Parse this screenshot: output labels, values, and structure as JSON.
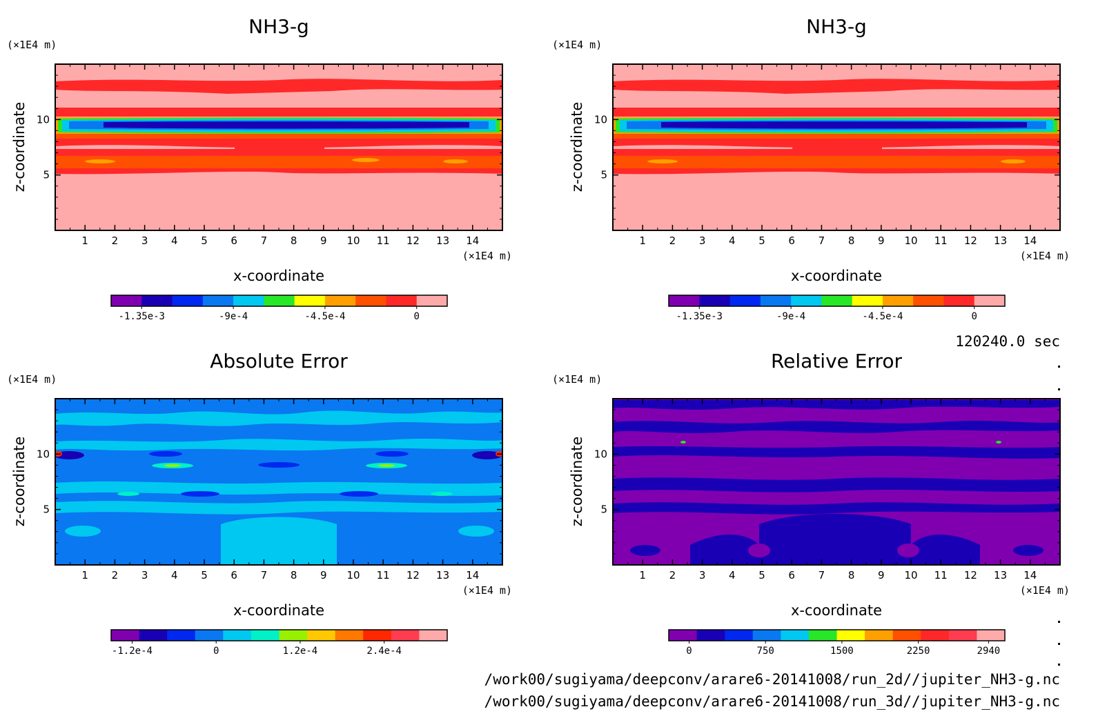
{
  "time_label": "120240.0 sec",
  "file_paths": [
    "/work00/sugiyama/deepconv/arare6-20141008/run_2d//jupiter_NH3-g.nc",
    "/work00/sugiyama/deepconv/arare6-20141008/run_3d//jupiter_NH3-g.nc"
  ],
  "chart_data": [
    {
      "type": "heatmap",
      "title": "NH3-g",
      "xlabel": "x-coordinate",
      "ylabel": "z-coordinate",
      "x_unit": "(×1E4 m)",
      "y_unit": "(×1E4 m)",
      "xlim": [
        0,
        15
      ],
      "ylim": [
        0,
        15
      ],
      "x_ticks": [
        "1",
        "2",
        "3",
        "4",
        "5",
        "6",
        "7",
        "8",
        "9",
        "10",
        "11",
        "12",
        "13",
        "14"
      ],
      "y_ticks": [
        "5",
        "10"
      ],
      "colorbar": {
        "colors": [
          "#8000b0",
          "#1a00b4",
          "#0028f0",
          "#0a78f0",
          "#00c8f0",
          "#28e628",
          "#ffff00",
          "#ffa000",
          "#ff5000",
          "#ff2828",
          "#ffaaaa"
        ],
        "tick_labels": [
          "-1.35e-3",
          "-9e-4",
          "-4.5e-4",
          "0"
        ],
        "tick_values": [
          -0.00135,
          -0.0009,
          -0.00045,
          0
        ],
        "range": [
          -0.0015,
          0.00015
        ]
      }
    },
    {
      "type": "heatmap",
      "title": "NH3-g",
      "xlabel": "x-coordinate",
      "ylabel": "z-coordinate",
      "x_unit": "(×1E4 m)",
      "y_unit": "(×1E4 m)",
      "xlim": [
        0,
        15
      ],
      "ylim": [
        0,
        15
      ],
      "x_ticks": [
        "1",
        "2",
        "3",
        "4",
        "5",
        "6",
        "7",
        "8",
        "9",
        "10",
        "11",
        "12",
        "13",
        "14"
      ],
      "y_ticks": [
        "5",
        "10"
      ],
      "colorbar": {
        "colors": [
          "#8000b0",
          "#1a00b4",
          "#0028f0",
          "#0a78f0",
          "#00c8f0",
          "#28e628",
          "#ffff00",
          "#ffa000",
          "#ff5000",
          "#ff2828",
          "#ffaaaa"
        ],
        "tick_labels": [
          "-1.35e-3",
          "-9e-4",
          "-4.5e-4",
          "0"
        ],
        "tick_values": [
          -0.00135,
          -0.0009,
          -0.00045,
          0
        ],
        "range": [
          -0.0015,
          0.00015
        ]
      }
    },
    {
      "type": "heatmap",
      "title": "Absolute Error",
      "xlabel": "x-coordinate",
      "ylabel": "z-coordinate",
      "x_unit": "(×1E4 m)",
      "y_unit": "(×1E4 m)",
      "xlim": [
        0,
        15
      ],
      "ylim": [
        0,
        15
      ],
      "x_ticks": [
        "1",
        "2",
        "3",
        "4",
        "5",
        "6",
        "7",
        "8",
        "9",
        "10",
        "11",
        "12",
        "13",
        "14"
      ],
      "y_ticks": [
        "5",
        "10"
      ],
      "colorbar": {
        "colors": [
          "#8000b0",
          "#1a00b4",
          "#0028f0",
          "#0a78f0",
          "#00c8f0",
          "#00f0c8",
          "#96f000",
          "#ffc800",
          "#ff7800",
          "#ff2800",
          "#ff3c50",
          "#ffaaaa"
        ],
        "tick_labels": [
          "-1.2e-4",
          "0",
          "1.2e-4",
          "2.4e-4"
        ],
        "tick_values": [
          -0.00012,
          0,
          0.00012,
          0.00024
        ],
        "range": [
          -0.00015,
          0.00033
        ]
      }
    },
    {
      "type": "heatmap",
      "title": "Relative Error",
      "xlabel": "x-coordinate",
      "ylabel": "z-coordinate",
      "x_unit": "(×1E4 m)",
      "y_unit": "(×1E4 m)",
      "xlim": [
        0,
        15
      ],
      "ylim": [
        0,
        15
      ],
      "x_ticks": [
        "1",
        "2",
        "3",
        "4",
        "5",
        "6",
        "7",
        "8",
        "9",
        "10",
        "11",
        "12",
        "13",
        "14"
      ],
      "y_ticks": [
        "5",
        "10"
      ],
      "colorbar": {
        "colors": [
          "#8000b0",
          "#1a00b4",
          "#0028f0",
          "#0a78f0",
          "#00c8f0",
          "#28e628",
          "#ffff00",
          "#ffa000",
          "#ff5000",
          "#ff2828",
          "#ff3c50",
          "#ffaaaa"
        ],
        "tick_labels": [
          "0",
          "750",
          "1500",
          "2250",
          "2940"
        ],
        "tick_values": [
          0,
          750,
          1500,
          2250,
          2940
        ],
        "range": [
          -200,
          3100
        ]
      }
    }
  ]
}
